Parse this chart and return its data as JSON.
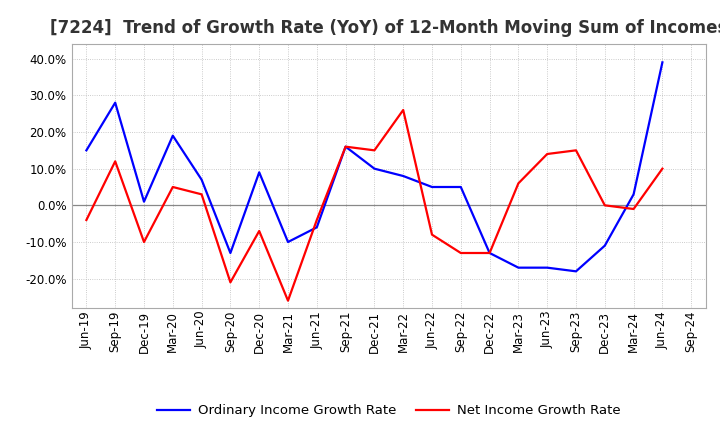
{
  "title": "[7224]  Trend of Growth Rate (YoY) of 12-Month Moving Sum of Incomes",
  "x_labels": [
    "Jun-19",
    "Sep-19",
    "Dec-19",
    "Mar-20",
    "Jun-20",
    "Sep-20",
    "Dec-20",
    "Mar-21",
    "Jun-21",
    "Sep-21",
    "Dec-21",
    "Mar-22",
    "Jun-22",
    "Sep-22",
    "Dec-22",
    "Mar-23",
    "Jun-23",
    "Sep-23",
    "Dec-23",
    "Mar-24",
    "Jun-24",
    "Sep-24"
  ],
  "ordinary_income": [
    0.15,
    0.28,
    0.01,
    0.19,
    0.07,
    -0.13,
    0.09,
    -0.1,
    -0.06,
    0.16,
    0.1,
    0.08,
    0.05,
    0.05,
    -0.13,
    -0.17,
    -0.17,
    -0.18,
    -0.11,
    0.03,
    0.39,
    null
  ],
  "net_income": [
    -0.04,
    0.12,
    -0.1,
    0.05,
    0.03,
    -0.21,
    -0.07,
    -0.26,
    -0.04,
    0.16,
    0.15,
    0.26,
    -0.08,
    -0.13,
    -0.13,
    0.06,
    0.14,
    0.15,
    0.0,
    -0.01,
    0.1,
    null
  ],
  "ylim": [
    -0.28,
    0.44
  ],
  "yticks": [
    -0.2,
    -0.1,
    0.0,
    0.1,
    0.2,
    0.3,
    0.4
  ],
  "line_color_ordinary": "#0000FF",
  "line_color_net": "#FF0000",
  "background_color": "#FFFFFF",
  "plot_bg_color": "#FFFFFF",
  "grid_color": "#BBBBBB",
  "zero_line_color": "#888888",
  "spine_color": "#AAAAAA",
  "legend_ordinary": "Ordinary Income Growth Rate",
  "legend_net": "Net Income Growth Rate",
  "title_fontsize": 12,
  "axis_fontsize": 8.5,
  "legend_fontsize": 9.5,
  "line_width": 1.6
}
